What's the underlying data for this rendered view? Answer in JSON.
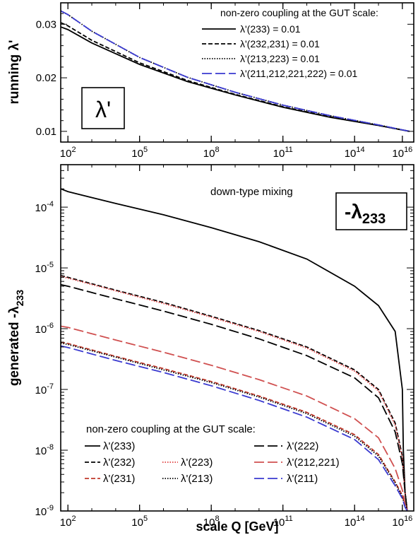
{
  "chart_data": [
    {
      "type": "line",
      "ylabel": "running λ'",
      "xscale": "log",
      "xlim": [
        50,
        30000000000000000
      ],
      "ylim": [
        0.008,
        0.034
      ],
      "x_ticks": [
        {
          "v": 100,
          "m": "10",
          "e": "2"
        },
        {
          "v": 100000,
          "m": "10",
          "e": "5"
        },
        {
          "v": 100000000,
          "m": "10",
          "e": "8"
        },
        {
          "v": 100000000000,
          "m": "10",
          "e": "11"
        },
        {
          "v": 100000000000000,
          "m": "10",
          "e": "14"
        },
        {
          "v": 10000000000000000,
          "m": "10",
          "e": "16"
        }
      ],
      "y_ticks": [
        {
          "v": 0.01,
          "label": "0.01"
        },
        {
          "v": 0.02,
          "label": "0.02"
        },
        {
          "v": 0.03,
          "label": "0.03"
        }
      ],
      "inset_label": "λ'",
      "legend": {
        "title": "non-zero coupling at the GUT scale:",
        "position": "top-right"
      },
      "series": [
        {
          "name": "λ'(233) = 0.01",
          "color": "#000000",
          "dash": "solid",
          "x": [
            50,
            100,
            1000,
            100000,
            10000000,
            1000000000,
            100000000000,
            10000000000000,
            1000000000000000,
            20000000000000000
          ],
          "y": [
            0.0295,
            0.029,
            0.0265,
            0.0225,
            0.0193,
            0.0168,
            0.0145,
            0.0126,
            0.0111,
            0.01
          ]
        },
        {
          "name": "λ'(232,231) = 0.01",
          "color": "#000000",
          "dash": "dashed",
          "x": [
            50,
            100,
            1000,
            100000,
            10000000,
            1000000000,
            100000000000,
            10000000000000,
            1000000000000000,
            20000000000000000
          ],
          "y": [
            0.0303,
            0.0297,
            0.027,
            0.0228,
            0.0195,
            0.0169,
            0.0146,
            0.0127,
            0.0111,
            0.01
          ]
        },
        {
          "name": "λ'(213,223) = 0.01",
          "color": "#000000",
          "dash": "dotted",
          "x": [
            50,
            100,
            1000,
            100000,
            10000000,
            1000000000,
            100000000000,
            10000000000000,
            1000000000000000,
            20000000000000000
          ],
          "y": [
            0.0325,
            0.0318,
            0.0287,
            0.0238,
            0.0201,
            0.0173,
            0.0149,
            0.0129,
            0.0112,
            0.01
          ]
        },
        {
          "name": "λ'(211,212,221,222) = 0.01",
          "color": "#3a3ad0",
          "dash": "longdash",
          "x": [
            50,
            100,
            1000,
            100000,
            10000000,
            1000000000,
            100000000000,
            10000000000000,
            1000000000000000,
            20000000000000000
          ],
          "y": [
            0.0325,
            0.0318,
            0.0287,
            0.0238,
            0.0201,
            0.0173,
            0.0149,
            0.0129,
            0.0112,
            0.01
          ]
        }
      ]
    },
    {
      "type": "line",
      "xlabel": "scale Q [GeV]",
      "ylabel": "generated -λ233",
      "xscale": "log",
      "yscale": "log",
      "xlim": [
        50,
        30000000000000000
      ],
      "ylim": [
        1e-09,
        0.0005
      ],
      "x_ticks": [
        {
          "v": 100,
          "m": "10",
          "e": "2"
        },
        {
          "v": 100000,
          "m": "10",
          "e": "5"
        },
        {
          "v": 100000000,
          "m": "10",
          "e": "8"
        },
        {
          "v": 100000000000,
          "m": "10",
          "e": "11"
        },
        {
          "v": 100000000000000,
          "m": "10",
          "e": "14"
        },
        {
          "v": 10000000000000000,
          "m": "10",
          "e": "16"
        }
      ],
      "y_ticks": [
        {
          "v": 1e-09,
          "m": "10",
          "e": "-9"
        },
        {
          "v": 1e-08,
          "m": "10",
          "e": "-8"
        },
        {
          "v": 1e-07,
          "m": "10",
          "e": "-7"
        },
        {
          "v": 1e-06,
          "m": "10",
          "e": "-6"
        },
        {
          "v": 1e-05,
          "m": "10",
          "e": "-5"
        },
        {
          "v": 0.0001,
          "m": "10",
          "e": "-4"
        }
      ],
      "annotation": "down-type mixing",
      "inset_label": {
        "main": "-λ",
        "sub": "233"
      },
      "legend": {
        "title": "non-zero coupling at the GUT scale:",
        "position": "bottom-left"
      },
      "series": [
        {
          "name": "λ'(233)",
          "color": "#000000",
          "dash": "solid",
          "x": [
            50,
            100,
            10000,
            1000000,
            100000000,
            10000000000,
            1000000000000,
            100000000000000,
            1000000000000000,
            5000000000000000,
            10000000000000000,
            11000000000000000,
            13000000000000000,
            16000000000000000
          ],
          "y": [
            0.0002,
            0.00018,
            0.000115,
            7.5e-05,
            4.6e-05,
            2.7e-05,
            1.4e-05,
            5e-06,
            2.4e-06,
            9e-07,
            1e-07,
            1e-08,
            2e-09,
            1e-09
          ]
        },
        {
          "name": "λ'(232)",
          "color": "#000000",
          "dash": "dashed",
          "x": [
            50,
            100,
            10000,
            1000000,
            100000000,
            10000000000,
            1000000000000,
            100000000000000,
            1000000000000000,
            5000000000000000,
            10000000000000000,
            13000000000000000,
            16000000000000000
          ],
          "y": [
            7.5e-06,
            7e-06,
            4.3e-06,
            2.7e-06,
            1.6e-06,
            9.3e-07,
            5e-07,
            2.1e-07,
            1e-07,
            2.8e-08,
            8e-09,
            2e-09,
            1e-09
          ]
        },
        {
          "name": "λ'(231)",
          "color": "#c0392b",
          "dash": "dashed",
          "x": [
            50,
            100,
            10000,
            1000000,
            100000000,
            10000000000,
            1000000000000,
            100000000000000,
            1000000000000000,
            5000000000000000,
            10000000000000000,
            13000000000000000,
            16000000000000000
          ],
          "y": [
            6e-07,
            5.7e-07,
            3.5e-07,
            2.2e-07,
            1.35e-07,
            7.8e-08,
            4.2e-08,
            1.8e-08,
            8.5e-09,
            3e-09,
            1.8e-09,
            1.2e-09,
            1e-09
          ]
        },
        {
          "name": "λ'(223)",
          "color": "#e04040",
          "dash": "dotted",
          "x": [
            50,
            100,
            10000,
            1000000,
            100000000,
            10000000000,
            1000000000000,
            100000000000000,
            1000000000000000,
            5000000000000000,
            10000000000000000,
            13000000000000000,
            16000000000000000
          ],
          "y": [
            7.3e-06,
            6.8e-06,
            4.2e-06,
            2.6e-06,
            1.55e-06,
            9e-07,
            4.8e-07,
            2e-07,
            9.5e-08,
            2.6e-08,
            7.5e-09,
            2e-09,
            1e-09
          ]
        },
        {
          "name": "λ'(213)",
          "color": "#000000",
          "dash": "dotted",
          "x": [
            50,
            100,
            10000,
            1000000,
            100000000,
            10000000000,
            1000000000000,
            100000000000000,
            1000000000000000,
            5000000000000000,
            10000000000000000,
            13000000000000000,
            16000000000000000
          ],
          "y": [
            5.8e-07,
            5.5e-07,
            3.4e-07,
            2.1e-07,
            1.3e-07,
            7.5e-08,
            4e-08,
            1.7e-08,
            8e-09,
            2.9e-09,
            1.7e-09,
            1.2e-09,
            1e-09
          ]
        },
        {
          "name": "λ'(222)",
          "color": "#000000",
          "dash": "longdash",
          "x": [
            50,
            100,
            10000,
            1000000,
            100000000,
            10000000000,
            1000000000000,
            100000000000000,
            1000000000000000,
            5000000000000000,
            10000000000000000,
            13000000000000000,
            16000000000000000
          ],
          "y": [
            5.3e-06,
            5e-06,
            3.1e-06,
            1.95e-06,
            1.18e-06,
            6.8e-07,
            3.6e-07,
            1.55e-07,
            7.3e-08,
            2e-08,
            6e-09,
            2e-09,
            1e-09
          ]
        },
        {
          "name": "λ'(212,221)",
          "color": "#d05050",
          "dash": "longdash",
          "x": [
            50,
            100,
            10000,
            1000000,
            100000000,
            10000000000,
            1000000000000,
            100000000000000,
            1000000000000000,
            5000000000000000,
            10000000000000000,
            13000000000000000,
            16000000000000000
          ],
          "y": [
            1.1e-06,
            1.05e-06,
            6.5e-07,
            4.1e-07,
            2.5e-07,
            1.45e-07,
            7.8e-08,
            3.3e-08,
            1.6e-08,
            5e-09,
            2.2e-09,
            1.3e-09,
            1e-09
          ]
        },
        {
          "name": "λ'(211)",
          "color": "#3a3ad0",
          "dash": "longdash",
          "x": [
            50,
            100,
            10000,
            1000000,
            100000000,
            10000000000,
            1000000000000,
            100000000000000,
            1000000000000000,
            5000000000000000,
            10000000000000000,
            13000000000000000,
            16000000000000000
          ],
          "y": [
            5.2e-07,
            4.9e-07,
            3e-07,
            1.9e-07,
            1.15e-07,
            6.6e-08,
            3.5e-08,
            1.5e-08,
            7e-09,
            2.6e-09,
            1.6e-09,
            1.15e-09,
            1e-09
          ]
        }
      ]
    }
  ]
}
